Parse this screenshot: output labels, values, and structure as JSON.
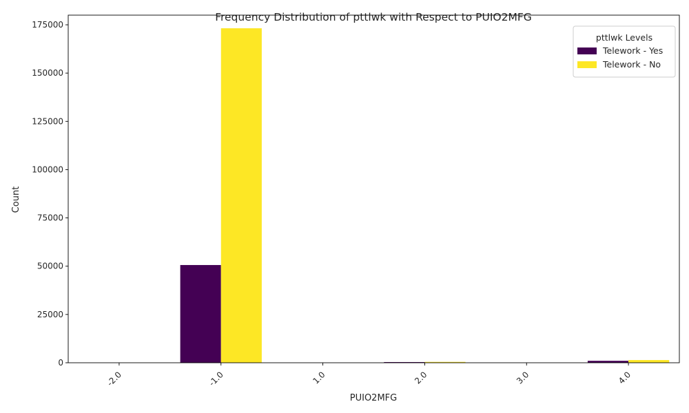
{
  "chart_data": {
    "type": "bar",
    "title": "Frequency Distribution of pttlwk with Respect to PUIO2MFG",
    "xlabel": "PUIO2MFG",
    "ylabel": "Count",
    "categories": [
      "-2.0",
      "-1.0",
      "1.0",
      "2.0",
      "3.0",
      "4.0"
    ],
    "series": [
      {
        "name": "Telework - Yes",
        "color": "#440154",
        "values": [
          10,
          50600,
          5,
          350,
          5,
          1000
        ]
      },
      {
        "name": "Telework - No",
        "color": "#fde725",
        "values": [
          20,
          173200,
          10,
          450,
          10,
          1400
        ]
      }
    ],
    "ylim": [
      0,
      180000
    ],
    "yticks": [
      0,
      25000,
      50000,
      75000,
      100000,
      125000,
      150000,
      175000
    ],
    "legend_title": "pttlwk Levels",
    "legend_position": "top-right",
    "grid": false
  }
}
